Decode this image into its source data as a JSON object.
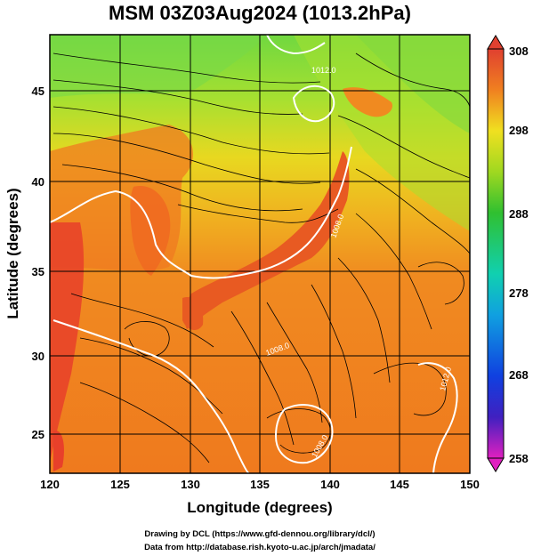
{
  "chart_data": {
    "type": "heatmap",
    "title": "MSM 03Z03Aug2024 (1013.2hPa)",
    "xlabel": "Longitude (degrees)",
    "ylabel": "Latitude  (degrees)",
    "xlim": [
      120,
      150
    ],
    "ylim": [
      22.5,
      47.5
    ],
    "x_ticks": [
      "120",
      "125",
      "130",
      "135",
      "140",
      "145",
      "150"
    ],
    "y_ticks": [
      "25",
      "30",
      "35",
      "40",
      "45"
    ],
    "colorbar": {
      "min": 258,
      "max": 308,
      "ticks": [
        "308",
        "298",
        "288",
        "278",
        "268",
        "258"
      ]
    },
    "grid": true,
    "contour_labels": [
      "1008.0",
      "1008.0",
      "1008.0",
      "1012.0",
      "1012.0"
    ],
    "credits": [
      "Drawing by DCL (https://www.gfd-dennou.org/library/dcl/)",
      "Data from http://database.rish.kyoto-u.ac.jp/arch/jmadata/"
    ]
  },
  "colors": {
    "warm": "#f07a20",
    "hot": "#e8402a",
    "mild": "#e8d020",
    "cool": "#68d040"
  }
}
